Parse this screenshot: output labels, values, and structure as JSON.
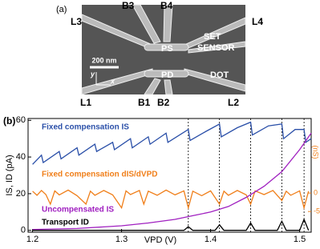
{
  "panel_a": {
    "label": "(a)",
    "electrodes": [
      "L3",
      "B3",
      "B4",
      "L4",
      "L1",
      "B1",
      "B2",
      "L2"
    ],
    "regions": [
      "PS",
      "PD",
      "SET",
      "SENSOR",
      "DOT"
    ],
    "scale_bar": "200 nm",
    "axis_y": "y",
    "axis_x": "x"
  },
  "chart_data": {
    "type": "line",
    "panel_label": "(b)",
    "x_label": "VPD (V)",
    "y_label": "IS, ID (pA)",
    "y2_label": "(nS)",
    "xlim": [
      1.195,
      1.513
    ],
    "xticks": [
      1.2,
      1.3,
      1.4,
      1.5
    ],
    "ylim": [
      -1,
      61
    ],
    "yticks": [
      0,
      20,
      40,
      60
    ],
    "y2lim": [
      -10.6,
      20.2
    ],
    "y2ticks": [
      0,
      -5
    ],
    "vlines": [
      1.375,
      1.41,
      1.445,
      1.48,
      1.505
    ],
    "series": [
      {
        "name": "Fixed compensation IS",
        "color": "#2a4fa8",
        "x": [
          1.2,
          1.21,
          1.212,
          1.23,
          1.232,
          1.25,
          1.252,
          1.27,
          1.272,
          1.29,
          1.292,
          1.31,
          1.312,
          1.33,
          1.332,
          1.35,
          1.352,
          1.375,
          1.377,
          1.395,
          1.41,
          1.412,
          1.43,
          1.445,
          1.447,
          1.465,
          1.48,
          1.482,
          1.495,
          1.505,
          1.507,
          1.513
        ],
        "values": [
          36,
          41,
          37,
          43,
          39,
          45,
          41,
          47,
          43,
          48,
          44,
          50,
          45,
          51,
          47,
          53,
          48,
          55,
          49,
          54,
          58,
          51,
          56,
          59,
          52,
          57,
          58,
          50,
          55,
          55,
          48,
          50
        ]
      },
      {
        "name": "Fixed compensation dIS/dVPD",
        "color": "#f07f1a",
        "axis": "y2",
        "x": [
          1.2,
          1.205,
          1.21,
          1.215,
          1.22,
          1.225,
          1.23,
          1.24,
          1.25,
          1.26,
          1.265,
          1.27,
          1.28,
          1.29,
          1.3,
          1.305,
          1.31,
          1.32,
          1.325,
          1.33,
          1.34,
          1.35,
          1.36,
          1.37,
          1.375,
          1.38,
          1.39,
          1.4,
          1.41,
          1.415,
          1.42,
          1.43,
          1.44,
          1.445,
          1.45,
          1.46,
          1.47,
          1.48,
          1.485,
          1.49,
          1.5,
          1.505,
          1.51
        ],
        "values": [
          0.5,
          -0.6,
          0.7,
          -0.4,
          -3,
          0.6,
          -0.5,
          0.8,
          -0.7,
          -3,
          0.5,
          -0.6,
          0.7,
          -0.5,
          -4,
          0.6,
          -0.4,
          0.7,
          -3,
          0.5,
          -0.6,
          0.8,
          -0.5,
          0.6,
          -4,
          0.5,
          -0.7,
          0.6,
          -3,
          0.5,
          -0.6,
          0.7,
          -0.5,
          -3,
          0.6,
          -0.4,
          0.7,
          -2,
          0.5,
          -0.6,
          0.6,
          -4,
          0.5
        ]
      },
      {
        "name": "Uncompensated IS",
        "color": "#a020c0",
        "x": [
          1.2,
          1.25,
          1.3,
          1.33,
          1.36,
          1.38,
          1.4,
          1.42,
          1.44,
          1.46,
          1.48,
          1.5,
          1.513
        ],
        "values": [
          0.5,
          1,
          2.5,
          4,
          6,
          8,
          10,
          13,
          18,
          24,
          32,
          44,
          53
        ]
      },
      {
        "name": "Transport ID",
        "color": "#000000",
        "x": [
          1.2,
          1.37,
          1.375,
          1.38,
          1.405,
          1.41,
          1.415,
          1.44,
          1.445,
          1.45,
          1.475,
          1.48,
          1.485,
          1.5,
          1.505,
          1.51
        ],
        "values": [
          0,
          0,
          2,
          0,
          0,
          3,
          0,
          0,
          4,
          0,
          0,
          5,
          0,
          0,
          6,
          0
        ]
      }
    ]
  }
}
